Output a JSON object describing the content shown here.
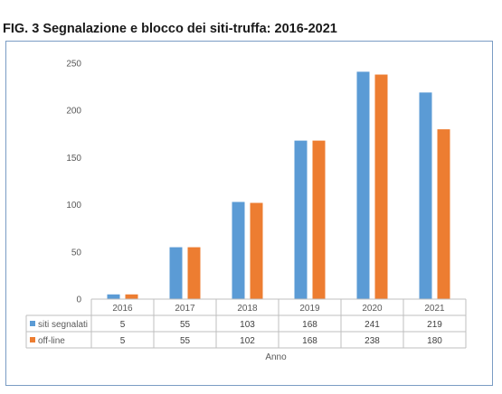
{
  "figure_title": "FIG. 3 Segnalazione e blocco dei siti-truffa: 2016-2021",
  "chart_data": {
    "type": "bar",
    "categories": [
      "2016",
      "2017",
      "2018",
      "2019",
      "2020",
      "2021"
    ],
    "series": [
      {
        "name": "siti segnalati",
        "color": "#5b9bd5",
        "values": [
          5,
          55,
          103,
          168,
          241,
          219
        ]
      },
      {
        "name": "off-line",
        "color": "#ed7d31",
        "values": [
          5,
          55,
          102,
          168,
          238,
          180
        ]
      }
    ],
    "xlabel": "Anno",
    "ylabel": "",
    "ylim": [
      0,
      250
    ],
    "yticks": [
      0,
      50,
      100,
      150,
      200,
      250
    ],
    "grid": false,
    "legend": "data table below plot"
  }
}
